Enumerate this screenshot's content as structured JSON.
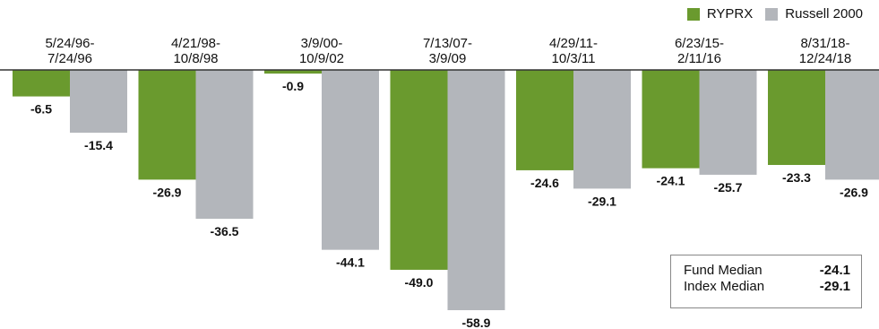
{
  "legend": [
    {
      "name": "RYPRX",
      "color": "#6a9a2e"
    },
    {
      "name": "Russell 2000",
      "color": "#b3b6bb"
    }
  ],
  "chart_data": {
    "type": "bar",
    "categories": [
      "5/24/96-\n7/24/96",
      "4/21/98-\n10/8/98",
      "3/9/00-\n10/9/02",
      "7/13/07-\n3/9/09",
      "4/29/11-\n10/3/11",
      "6/23/15-\n2/11/16",
      "8/31/18-\n12/24/18"
    ],
    "series": [
      {
        "name": "RYPRX",
        "color": "#6a9a2e",
        "values": [
          -6.5,
          -26.9,
          -0.9,
          -49.0,
          -24.6,
          -24.1,
          -23.3
        ]
      },
      {
        "name": "Russell 2000",
        "color": "#b3b6bb",
        "values": [
          -15.4,
          -36.5,
          -44.1,
          -58.9,
          -29.1,
          -25.7,
          -26.9
        ]
      }
    ],
    "ylim": [
      -60,
      0
    ],
    "grid": false,
    "legend_position": "top-right"
  },
  "median_box": {
    "rows": [
      {
        "label": "Fund Median",
        "value": "-24.1"
      },
      {
        "label": "Index Median",
        "value": "-29.1"
      }
    ]
  }
}
